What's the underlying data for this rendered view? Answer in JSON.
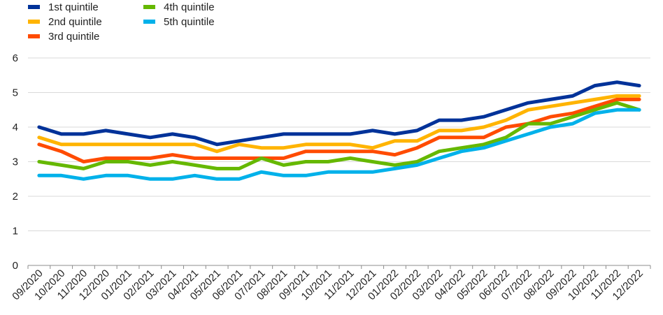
{
  "chart_data": {
    "type": "line",
    "title": "",
    "xlabel": "",
    "ylabel": "",
    "ylim": [
      0,
      6
    ],
    "yticks": [
      0,
      1,
      2,
      3,
      4,
      5,
      6
    ],
    "grid": "horizontal",
    "legend_position": "top-left",
    "categories": [
      "09/2020",
      "10/2020",
      "11/2020",
      "12/2020",
      "01/2021",
      "02/2021",
      "03/2021",
      "04/2021",
      "05/2021",
      "06/2021",
      "07/2021",
      "08/2021",
      "09/2021",
      "10/2021",
      "11/2021",
      "12/2021",
      "01/2022",
      "02/2022",
      "03/2022",
      "04/2022",
      "05/2022",
      "06/2022",
      "07/2022",
      "08/2022",
      "09/2022",
      "10/2022",
      "11/2022",
      "12/2022"
    ],
    "series": [
      {
        "name": "1st quintile",
        "color": "#003299",
        "values": [
          4.0,
          3.8,
          3.8,
          3.9,
          3.8,
          3.7,
          3.8,
          3.7,
          3.5,
          3.6,
          3.7,
          3.8,
          3.8,
          3.8,
          3.8,
          3.9,
          3.8,
          3.9,
          4.2,
          4.2,
          4.3,
          4.5,
          4.7,
          4.8,
          4.9,
          5.2,
          5.3,
          5.2
        ]
      },
      {
        "name": "2nd quintile",
        "color": "#FFB400",
        "values": [
          3.7,
          3.5,
          3.5,
          3.5,
          3.5,
          3.5,
          3.5,
          3.5,
          3.3,
          3.5,
          3.4,
          3.4,
          3.5,
          3.5,
          3.5,
          3.4,
          3.6,
          3.6,
          3.9,
          3.9,
          4.0,
          4.2,
          4.5,
          4.6,
          4.7,
          4.8,
          4.9,
          4.9
        ]
      },
      {
        "name": "3rd quintile",
        "color": "#FF4B00",
        "values": [
          3.5,
          3.3,
          3.0,
          3.1,
          3.1,
          3.1,
          3.2,
          3.1,
          3.1,
          3.1,
          3.1,
          3.1,
          3.3,
          3.3,
          3.3,
          3.3,
          3.2,
          3.4,
          3.7,
          3.7,
          3.7,
          4.0,
          4.1,
          4.3,
          4.4,
          4.6,
          4.8,
          4.8
        ]
      },
      {
        "name": "4th quintile",
        "color": "#65B800",
        "values": [
          3.0,
          2.9,
          2.8,
          3.0,
          3.0,
          2.9,
          3.0,
          2.9,
          2.8,
          2.8,
          3.1,
          2.9,
          3.0,
          3.0,
          3.1,
          3.0,
          2.9,
          3.0,
          3.3,
          3.4,
          3.5,
          3.7,
          4.1,
          4.1,
          4.3,
          4.5,
          4.7,
          4.5
        ]
      },
      {
        "name": "5th quintile",
        "color": "#00B1EA",
        "values": [
          2.6,
          2.6,
          2.5,
          2.6,
          2.6,
          2.5,
          2.5,
          2.6,
          2.5,
          2.5,
          2.7,
          2.6,
          2.6,
          2.7,
          2.7,
          2.7,
          2.8,
          2.9,
          3.1,
          3.3,
          3.4,
          3.6,
          3.8,
          4.0,
          4.1,
          4.4,
          4.5,
          4.5
        ]
      }
    ]
  }
}
